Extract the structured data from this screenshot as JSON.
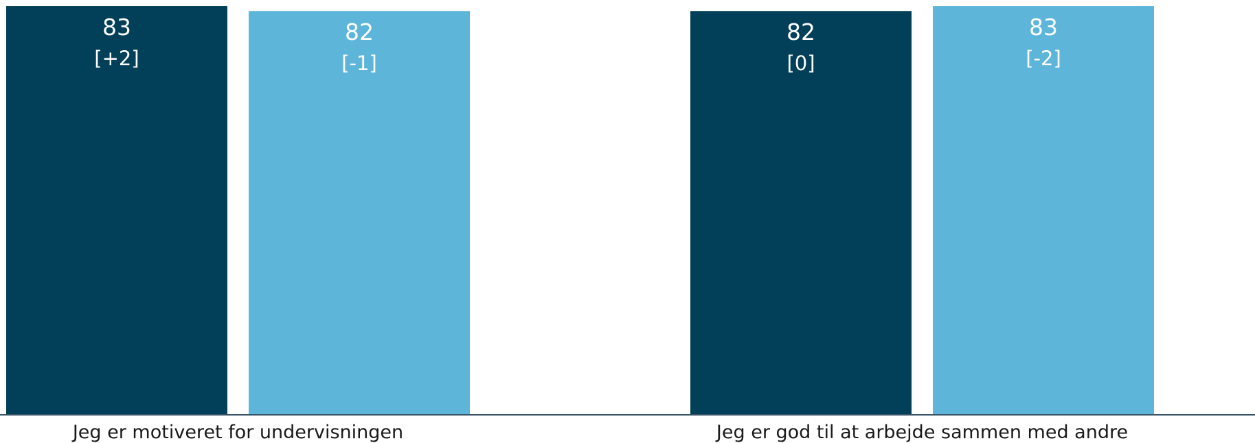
{
  "chart_data": {
    "type": "bar",
    "categories": [
      "Jeg er motiveret for undervisningen",
      "Jeg er god til at arbejde sammen med andre"
    ],
    "series": [
      {
        "values": [
          83,
          82
        ],
        "delta_labels": [
          "[+2]",
          "[0]"
        ],
        "color": "#023f59"
      },
      {
        "values": [
          82,
          83
        ],
        "delta_labels": [
          "[-1]",
          "[-2]"
        ],
        "color": "#5db5da"
      }
    ],
    "title": "",
    "xlabel": "",
    "ylabel": "",
    "ylim": [
      0,
      83
    ],
    "grid": false,
    "axis_color": "#3a5568"
  }
}
